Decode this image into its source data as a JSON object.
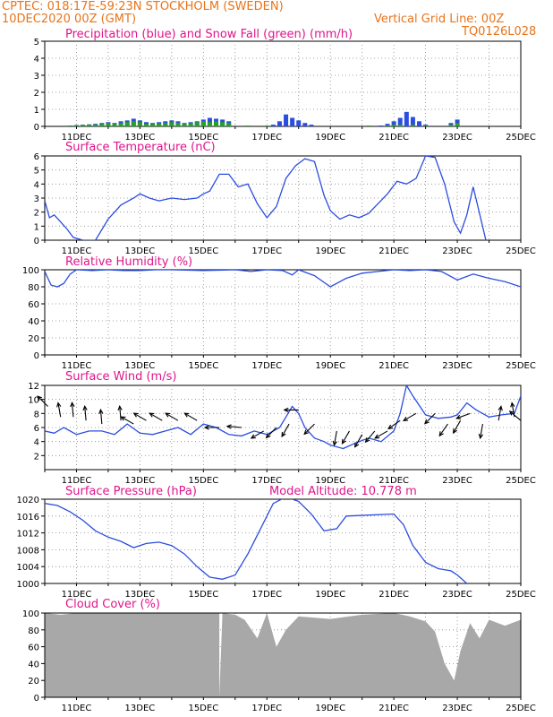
{
  "header": {
    "station": "CPTEC:   018:17E-59:23N   STOCKHOLM (SWEDEN)",
    "date": "10DEC2020 00Z (GMT)",
    "grid_note": "Vertical Grid Line: 00Z",
    "code": "TQ0126L028"
  },
  "colors": {
    "header": "#e8741a",
    "title": "#e0148c",
    "line": "#2b4de0",
    "snow": "#25a125",
    "cloud": "#a8a8a8"
  },
  "x_ticks": [
    "11DEC",
    "13DEC",
    "15DEC",
    "17DEC",
    "19DEC",
    "21DEC",
    "23DEC",
    "25DEC"
  ],
  "chart_data": [
    {
      "type": "bar",
      "title": "Precipitation (blue) and Snow Fall (green) (mm/h)",
      "ylim": [
        0,
        5
      ],
      "yticks": [
        "0",
        "1",
        "2",
        "3",
        "4",
        "5"
      ],
      "series": [
        {
          "name": "Precipitation",
          "color": "#2b4de0",
          "x": [
            10.8,
            11.0,
            11.2,
            11.4,
            11.6,
            11.8,
            12.0,
            12.2,
            12.4,
            12.6,
            12.8,
            13.0,
            13.2,
            13.4,
            13.6,
            13.8,
            14.0,
            14.2,
            14.4,
            14.6,
            14.8,
            15.0,
            15.2,
            15.4,
            15.6,
            15.8,
            17.2,
            17.4,
            17.6,
            17.8,
            18.0,
            18.2,
            18.4,
            20.6,
            20.8,
            21.0,
            21.2,
            21.4,
            21.6,
            21.8,
            22.0,
            22.8,
            23.0
          ],
          "values": [
            0.05,
            0.08,
            0.1,
            0.12,
            0.15,
            0.2,
            0.25,
            0.2,
            0.3,
            0.35,
            0.45,
            0.35,
            0.25,
            0.2,
            0.25,
            0.3,
            0.35,
            0.3,
            0.2,
            0.25,
            0.3,
            0.4,
            0.5,
            0.45,
            0.4,
            0.3,
            0.1,
            0.3,
            0.7,
            0.5,
            0.35,
            0.2,
            0.1,
            0.05,
            0.15,
            0.3,
            0.5,
            0.85,
            0.55,
            0.3,
            0.1,
            0.2,
            0.4
          ]
        },
        {
          "name": "Snow Fall",
          "color": "#25a125",
          "x": [
            10.8,
            11.0,
            11.2,
            11.4,
            11.6,
            11.8,
            12.0,
            12.2,
            12.4,
            12.6,
            12.8,
            13.0,
            13.2,
            13.4,
            13.6,
            13.8,
            14.0,
            14.2,
            14.4,
            14.6,
            14.8,
            15.0,
            15.2,
            15.4,
            15.6,
            15.8,
            16.4,
            17.0,
            20.2,
            20.8,
            21.0,
            21.2,
            21.6,
            22.0,
            22.8,
            23.0
          ],
          "values": [
            0.04,
            0.06,
            0.08,
            0.1,
            0.1,
            0.15,
            0.2,
            0.15,
            0.2,
            0.25,
            0.3,
            0.25,
            0.15,
            0.15,
            0.2,
            0.2,
            0.25,
            0.2,
            0.15,
            0.2,
            0.25,
            0.3,
            0.25,
            0.3,
            0.25,
            0.2,
            0.05,
            0.05,
            0.05,
            0.05,
            0.1,
            0.1,
            0.1,
            0.05,
            0.1,
            0.2
          ]
        }
      ]
    },
    {
      "type": "line",
      "title": "Surface Temperature (nC)",
      "ylim": [
        0,
        6
      ],
      "yticks": [
        "0",
        "1",
        "2",
        "3",
        "4",
        "5",
        "6"
      ],
      "series": [
        {
          "color": "#2b4de0",
          "x": [
            10.0,
            10.15,
            10.3,
            10.5,
            10.7,
            10.9,
            11.2,
            11.6,
            12.0,
            12.4,
            12.8,
            13.0,
            13.3,
            13.6,
            14.0,
            14.4,
            14.8,
            15.0,
            15.2,
            15.5,
            15.8,
            16.1,
            16.4,
            16.7,
            17.0,
            17.3,
            17.6,
            17.9,
            18.2,
            18.5,
            18.8,
            19.0,
            19.3,
            19.6,
            19.9,
            20.2,
            20.5,
            20.8,
            21.1,
            21.4,
            21.7,
            22.0,
            22.3,
            22.6,
            22.9,
            23.1,
            23.3,
            23.5,
            23.9
          ],
          "y": [
            2.8,
            1.6,
            1.8,
            1.3,
            0.8,
            0.2,
            0.0,
            0.0,
            1.5,
            2.5,
            3.0,
            3.3,
            3.0,
            2.8,
            3.0,
            2.9,
            3.0,
            3.3,
            3.5,
            4.7,
            4.7,
            3.8,
            4.0,
            2.6,
            1.6,
            2.4,
            4.4,
            5.3,
            5.8,
            5.6,
            3.2,
            2.1,
            1.5,
            1.8,
            1.6,
            1.9,
            2.6,
            3.3,
            4.2,
            4.0,
            4.4,
            6.0,
            5.9,
            4.0,
            1.3,
            0.5,
            1.8,
            3.8,
            0.0
          ]
        }
      ]
    },
    {
      "type": "line",
      "title": "Relative Humidity (%)",
      "ylim": [
        0,
        100
      ],
      "yticks": [
        "0",
        "20",
        "40",
        "60",
        "80",
        "100"
      ],
      "series": [
        {
          "color": "#2b4de0",
          "x": [
            10.0,
            10.2,
            10.4,
            10.6,
            10.8,
            11.0,
            11.5,
            12.0,
            12.5,
            13.0,
            13.5,
            14.0,
            15.0,
            16.0,
            16.5,
            17.0,
            17.5,
            17.8,
            18.0,
            18.5,
            19.0,
            19.5,
            20.0,
            20.5,
            21.0,
            21.5,
            22.0,
            22.5,
            23.0,
            23.5,
            24.0,
            24.5,
            25.0
          ],
          "y": [
            98,
            82,
            80,
            84,
            95,
            100,
            99,
            100,
            99,
            99,
            100,
            100,
            99,
            100,
            98,
            100,
            99,
            94,
            100,
            93,
            80,
            90,
            96,
            98,
            100,
            99,
            100,
            98,
            88,
            95,
            90,
            86,
            80
          ]
        }
      ]
    },
    {
      "type": "line",
      "title": "Surface Wind (m/s)",
      "ylim": [
        0,
        12
      ],
      "yticks": [
        "2",
        "4",
        "6",
        "8",
        "10",
        "12"
      ],
      "series": [
        {
          "color": "#2b4de0",
          "x": [
            10.0,
            10.3,
            10.6,
            11.0,
            11.4,
            11.8,
            12.2,
            12.6,
            13.0,
            13.4,
            13.8,
            14.2,
            14.6,
            15.0,
            15.4,
            15.8,
            16.2,
            16.6,
            17.0,
            17.4,
            17.6,
            17.8,
            18.0,
            18.2,
            18.5,
            18.8,
            19.0,
            19.4,
            19.8,
            20.2,
            20.6,
            21.0,
            21.2,
            21.4,
            21.6,
            22.0,
            22.4,
            22.8,
            23.0,
            23.3,
            23.6,
            24.0,
            24.4,
            24.8,
            25.0
          ],
          "y": [
            5.5,
            5.2,
            6.0,
            5.0,
            5.5,
            5.5,
            5.0,
            6.5,
            5.2,
            5.0,
            5.5,
            6.0,
            5.0,
            6.5,
            6.0,
            5.0,
            4.8,
            5.5,
            5.0,
            6.0,
            7.5,
            9.0,
            8.0,
            6.0,
            4.5,
            4.0,
            3.5,
            3.0,
            3.8,
            4.5,
            4.0,
            5.5,
            8.0,
            12.0,
            10.5,
            7.8,
            7.3,
            7.5,
            7.8,
            9.5,
            8.5,
            7.5,
            7.8,
            8.0,
            10.5
          ]
        }
      ],
      "wind_barbs": {
        "x": [
          10.1,
          10.5,
          10.9,
          11.3,
          11.8,
          12.4,
          12.8,
          13.2,
          13.7,
          14.2,
          14.8,
          15.5,
          16.2,
          16.9,
          17.3,
          17.7,
          18.0,
          18.5,
          19.2,
          19.6,
          20.0,
          20.4,
          20.8,
          21.2,
          21.7,
          22.3,
          22.7,
          23.1,
          23.4,
          23.8,
          24.3,
          24.8,
          25.0
        ],
        "speed": [
          9,
          7.5,
          7.5,
          7,
          6.5,
          7,
          6.5,
          7,
          7,
          7,
          7,
          6,
          6,
          5.5,
          6,
          6.5,
          8.5,
          6.5,
          5.5,
          5.5,
          5,
          5.5,
          5.5,
          7,
          8,
          8,
          6.5,
          7,
          8,
          6.5,
          7,
          7.5,
          7
        ],
        "dir": [
          135,
          100,
          95,
          95,
          95,
          95,
          150,
          150,
          150,
          150,
          150,
          180,
          175,
          210,
          225,
          240,
          180,
          225,
          260,
          240,
          240,
          230,
          210,
          215,
          210,
          225,
          235,
          240,
          200,
          260,
          80,
          100,
          140
        ]
      }
    },
    {
      "type": "line",
      "title": "Surface Pressure (hPa)",
      "annotation": "Model Altitude: 10.778 m",
      "ylim": [
        1000,
        1020
      ],
      "yticks": [
        "1000",
        "1004",
        "1008",
        "1012",
        "1016",
        "1020"
      ],
      "series": [
        {
          "color": "#2b4de0",
          "x": [
            10.0,
            10.4,
            10.8,
            11.2,
            11.6,
            12.0,
            12.4,
            12.8,
            13.2,
            13.6,
            14.0,
            14.4,
            14.8,
            15.2,
            15.6,
            16.0,
            16.4,
            16.8,
            17.2,
            17.6,
            18.0,
            18.4,
            18.8,
            19.2,
            19.5,
            21.0,
            21.3,
            21.6,
            22.0,
            22.4,
            22.8,
            23.0,
            23.3
          ],
          "y": [
            1019,
            1018.5,
            1017,
            1015,
            1012.5,
            1011,
            1010,
            1008.5,
            1009.5,
            1009.8,
            1009,
            1007,
            1004,
            1001.5,
            1001,
            1002,
            1007,
            1013,
            1019,
            1020.5,
            1019.5,
            1016.5,
            1012.5,
            1013,
            1016,
            1016.5,
            1014,
            1009,
            1005,
            1003.5,
            1003,
            1002,
            1000
          ]
        }
      ]
    },
    {
      "type": "area",
      "title": "Cloud Cover (%)",
      "ylim": [
        0,
        100
      ],
      "yticks": [
        "0",
        "20",
        "40",
        "60",
        "80",
        "100"
      ],
      "series": [
        {
          "color": "#a8a8a8",
          "x": [
            10.0,
            10.5,
            11.0,
            12.0,
            13.0,
            14.0,
            15.0,
            15.5,
            15.5,
            15.6,
            16.0,
            16.3,
            16.7,
            17.0,
            17.3,
            17.6,
            18.0,
            19.0,
            20.0,
            21.0,
            21.5,
            22.0,
            22.3,
            22.6,
            22.9,
            23.1,
            23.4,
            23.7,
            24.0,
            24.5,
            25.0
          ],
          "y": [
            100,
            98,
            100,
            100,
            100,
            100,
            100,
            100,
            0,
            100,
            98,
            92,
            70,
            100,
            60,
            80,
            96,
            93,
            98,
            100,
            96,
            90,
            78,
            40,
            20,
            55,
            88,
            70,
            92,
            85,
            92
          ]
        }
      ]
    }
  ]
}
